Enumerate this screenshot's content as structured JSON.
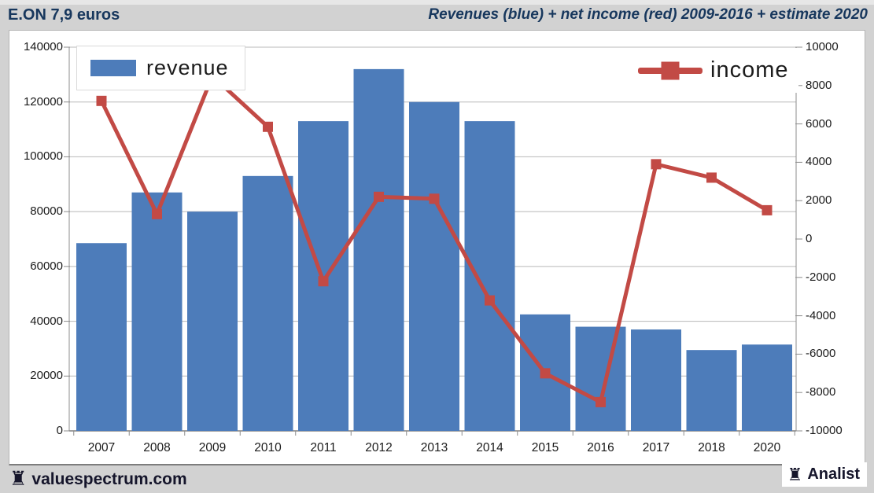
{
  "header": {
    "left_title": "E.ON 7,9 euros",
    "right_title": "Revenues (blue) + net income (red) 2009-2016 + estimate 2020"
  },
  "legend": {
    "revenue_label": "revenue",
    "income_label": "income"
  },
  "footer": {
    "rook_icon": "♜",
    "site": "valuespectrum.com",
    "badge": "Analist"
  },
  "colors": {
    "bar_blue": "#4d7cba",
    "line_red": "#c24a45",
    "header_text": "#17375d",
    "footer_text": "#15152b",
    "grid": "#b8b8b8",
    "axis": "#8c8c8c",
    "axis_bottom": "#808080",
    "panel_gray": "#d2d2d2"
  },
  "chart_data": {
    "type": "bar+line combo",
    "title": "Revenues (blue) + net income (red) 2009-2016 + estimate 2020",
    "categories": [
      "2007",
      "2008",
      "2009",
      "2010",
      "2011",
      "2012",
      "2013",
      "2014",
      "2015",
      "2016",
      "2017",
      "2018",
      "2020"
    ],
    "series": [
      {
        "name": "revenue",
        "type": "bar",
        "axis": "left",
        "color": "#4d7cba",
        "values": [
          68500,
          87000,
          80000,
          93000,
          113000,
          132000,
          120000,
          113000,
          42500,
          38000,
          37000,
          29500,
          31500
        ]
      },
      {
        "name": "income",
        "type": "line",
        "axis": "right",
        "color": "#c24a45",
        "marker": "square",
        "values": [
          7200,
          1300,
          8500,
          5850,
          -2200,
          2200,
          2100,
          -3200,
          -7000,
          -8500,
          3900,
          3200,
          1500
        ],
        "note": "2009 peak and its marker are hidden behind the revenue legend box"
      }
    ],
    "left_axis": {
      "min": 0,
      "max": 140000,
      "step": 20000,
      "tick_labels": [
        "140000",
        "120000",
        "100000",
        "80000",
        "60000",
        "40000",
        "20000",
        "0"
      ]
    },
    "right_axis": {
      "min": -10000,
      "max": 10000,
      "step": 2000,
      "tick_labels": [
        "10000",
        "8000",
        "6000",
        "4000",
        "2000",
        "0",
        "-2000",
        "-4000",
        "-6000",
        "-8000",
        "-10000"
      ]
    },
    "grid": "horizontal gridlines at left-axis steps, behind bars",
    "legend_position": "revenue top-left, income top-right, white boxes inside plot"
  }
}
